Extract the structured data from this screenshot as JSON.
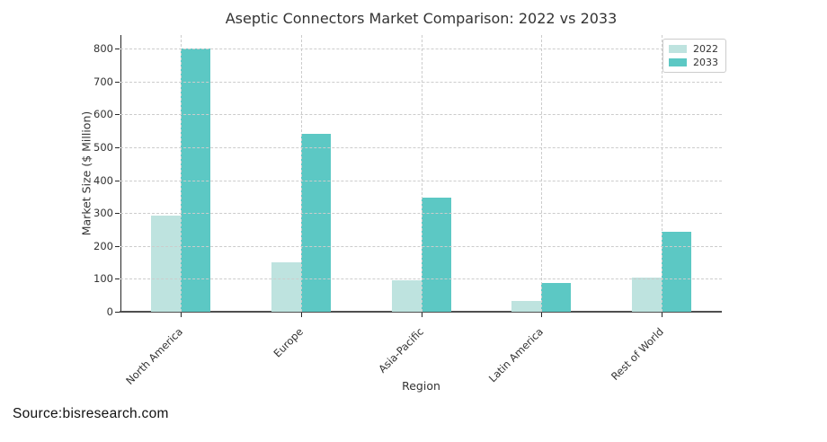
{
  "title": "Aseptic Connectors Market Comparison: 2022 vs 2033",
  "source_note": "Source:bisresearch.com",
  "chart_data": {
    "type": "bar",
    "title": "Aseptic Connectors Market Comparison: 2022 vs 2033",
    "xlabel": "Region",
    "ylabel": "Market Size ($ Million)",
    "categories": [
      "North America",
      "Europe",
      "Asia-Pacific",
      "Latin America",
      "Rest of World"
    ],
    "series": [
      {
        "name": "2022",
        "color": "#bee3df",
        "values": [
          293,
          150,
          95,
          33,
          105
        ]
      },
      {
        "name": "2033",
        "color": "#5cc8c4",
        "values": [
          800,
          540,
          347,
          87,
          242
        ]
      }
    ],
    "ylim": [
      0,
      840
    ],
    "yticks": [
      0,
      100,
      200,
      300,
      400,
      500,
      600,
      700,
      800
    ],
    "grid": true,
    "grid_style": "dashed",
    "legend_position": "upper right",
    "background": "#ffffff",
    "text_color": "#333333"
  }
}
